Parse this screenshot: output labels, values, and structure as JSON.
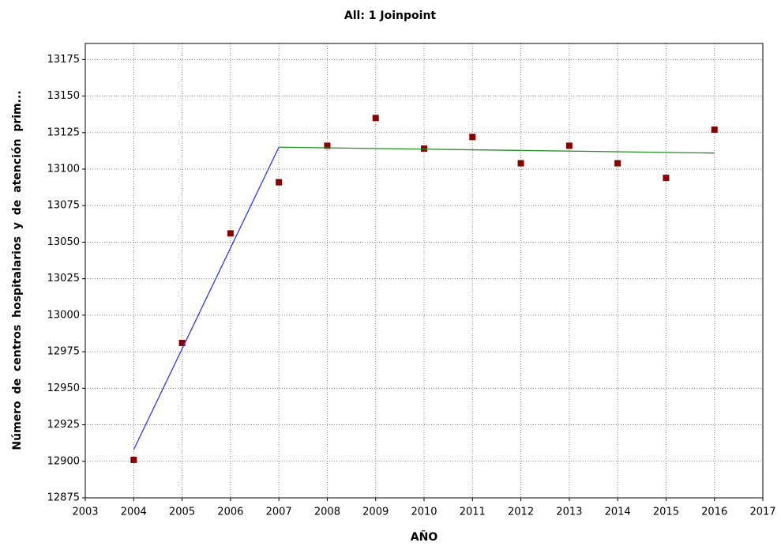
{
  "chart_data": {
    "type": "scatter",
    "title": "All: 1 Joinpoint",
    "x_label": "AÑO",
    "y_label": "Número de centros hospitalarios y de atención prim...",
    "xlim": [
      2003,
      2017
    ],
    "xticks": [
      2003,
      2004,
      2005,
      2006,
      2007,
      2008,
      2009,
      2010,
      2011,
      2012,
      2013,
      2014,
      2015,
      2016,
      2017
    ],
    "ylim": [
      12875,
      13186
    ],
    "yticks": [
      12875,
      12900,
      12925,
      12950,
      12975,
      13000,
      13025,
      13050,
      13075,
      13100,
      13125,
      13150,
      13175
    ],
    "grid": true,
    "series": [
      {
        "kind": "points",
        "color": "#8b0000",
        "x": [
          2004,
          2005,
          2006,
          2007,
          2008,
          2009,
          2010,
          2011,
          2012,
          2013,
          2014,
          2015,
          2016
        ],
        "values": [
          12901,
          12981,
          13056,
          13091,
          13116,
          13135,
          13114,
          13122,
          13104,
          13116,
          13104,
          13094,
          13127
        ]
      },
      {
        "kind": "line",
        "color": "#3333ff",
        "x": [
          2004,
          2007
        ],
        "values": [
          12908,
          13115
        ]
      },
      {
        "kind": "line",
        "color": "#228b22",
        "x": [
          2007,
          2016
        ],
        "values": [
          13115,
          13111
        ]
      }
    ]
  }
}
